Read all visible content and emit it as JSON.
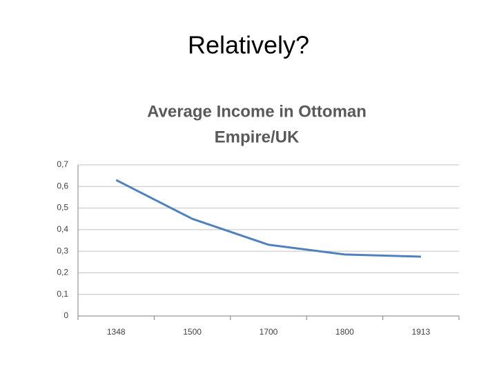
{
  "slide_title": "Relatively?",
  "chart_data": {
    "type": "line",
    "title": [
      "Average Income in Ottoman",
      "Empire/UK"
    ],
    "categories": [
      "1348",
      "1500",
      "1700",
      "1800",
      "1913"
    ],
    "values": [
      0.63,
      0.45,
      0.33,
      0.285,
      0.275
    ],
    "color": "#4f81bd",
    "ylim": [
      0,
      0.7
    ],
    "yticks": [
      0,
      {
        "value": 0.1,
        "label": "0,1"
      },
      {
        "value": 0.2,
        "label": "0,2"
      },
      {
        "value": 0.3,
        "label": "0,3"
      },
      {
        "value": 0.4,
        "label": "0,4"
      },
      {
        "value": 0.5,
        "label": "0,5"
      },
      {
        "value": 0.6,
        "label": "0,6"
      },
      {
        "value": 0.7,
        "label": "0,7"
      }
    ],
    "grid": true
  }
}
